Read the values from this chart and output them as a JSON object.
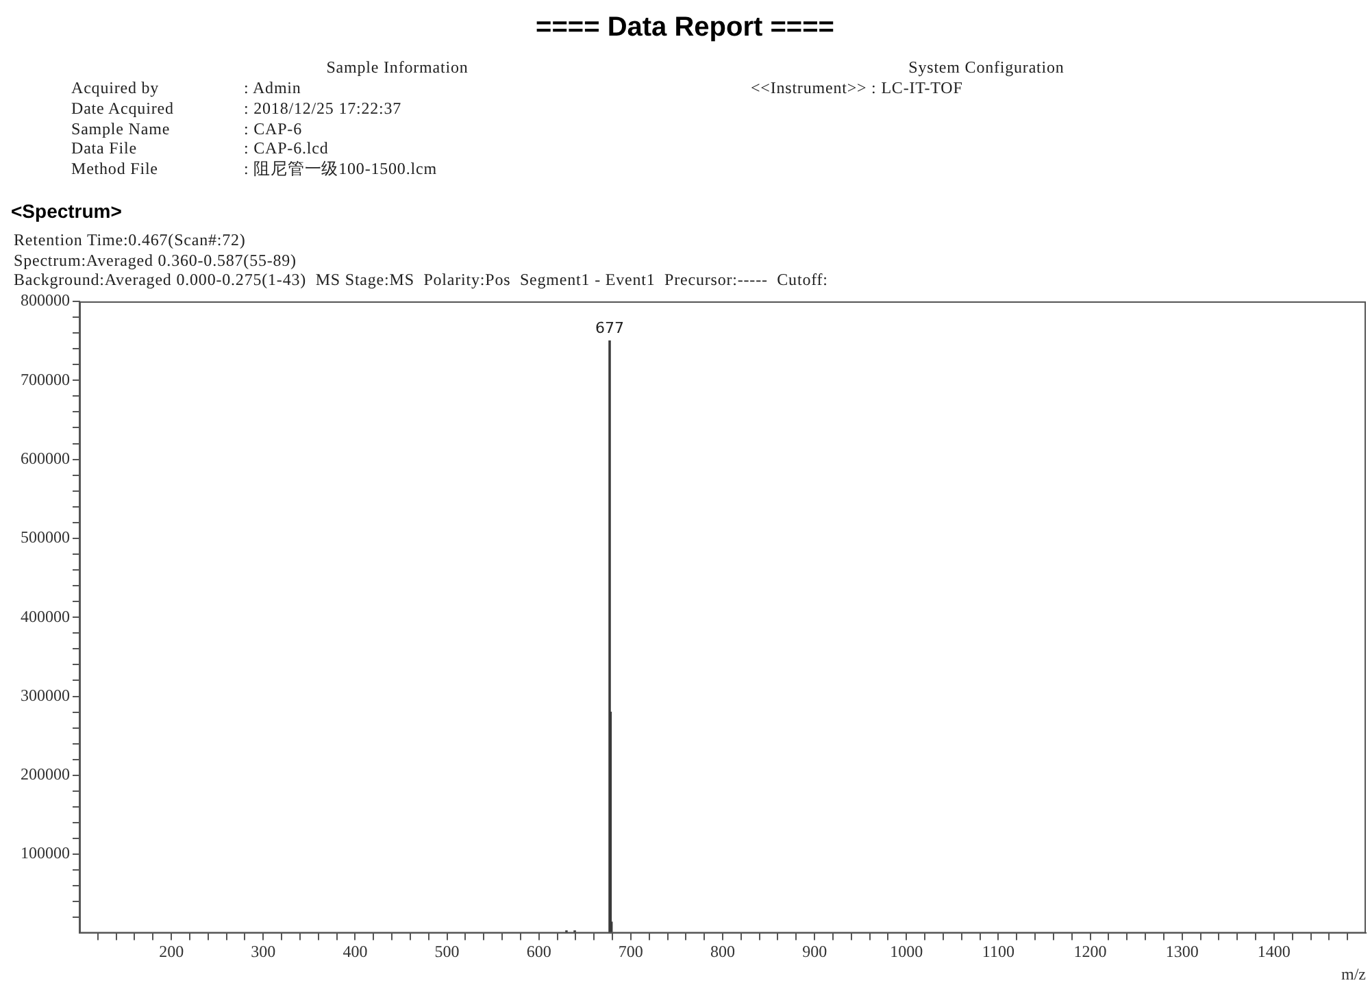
{
  "chart_data": {
    "type": "bar",
    "title": "==== Data Report ====",
    "xlabel": "m/z",
    "x": [
      630,
      639,
      677,
      678,
      679
    ],
    "values": [
      3000,
      3000,
      750000,
      280000,
      14000
    ],
    "color": "#3a3a3a",
    "xlim": [
      100,
      1500
    ],
    "xticks": [
      {
        "value": 120,
        "label": null
      },
      {
        "value": 140,
        "label": null
      },
      {
        "value": 160,
        "label": null
      },
      {
        "value": 180,
        "label": null
      },
      200,
      {
        "value": 220,
        "label": null
      },
      {
        "value": 240,
        "label": null
      },
      {
        "value": 260,
        "label": null
      },
      {
        "value": 280,
        "label": null
      },
      300,
      {
        "value": 320,
        "label": null
      },
      {
        "value": 340,
        "label": null
      },
      {
        "value": 360,
        "label": null
      },
      {
        "value": 380,
        "label": null
      },
      400,
      {
        "value": 420,
        "label": null
      },
      {
        "value": 440,
        "label": null
      },
      {
        "value": 460,
        "label": null
      },
      {
        "value": 480,
        "label": null
      },
      500,
      {
        "value": 520,
        "label": null
      },
      {
        "value": 540,
        "label": null
      },
      {
        "value": 560,
        "label": null
      },
      {
        "value": 580,
        "label": null
      },
      600,
      {
        "value": 620,
        "label": null
      },
      {
        "value": 640,
        "label": null
      },
      {
        "value": 660,
        "label": null
      },
      {
        "value": 680,
        "label": null
      },
      700,
      {
        "value": 720,
        "label": null
      },
      {
        "value": 740,
        "label": null
      },
      {
        "value": 760,
        "label": null
      },
      {
        "value": 780,
        "label": null
      },
      800,
      {
        "value": 820,
        "label": null
      },
      {
        "value": 840,
        "label": null
      },
      {
        "value": 860,
        "label": null
      },
      {
        "value": 880,
        "label": null
      },
      900,
      {
        "value": 920,
        "label": null
      },
      {
        "value": 940,
        "label": null
      },
      {
        "value": 960,
        "label": null
      },
      {
        "value": 980,
        "label": null
      },
      1000,
      {
        "value": 1020,
        "label": null
      },
      {
        "value": 1040,
        "label": null
      },
      {
        "value": 1060,
        "label": null
      },
      {
        "value": 1080,
        "label": null
      },
      1100,
      {
        "value": 1120,
        "label": null
      },
      {
        "value": 1140,
        "label": null
      },
      {
        "value": 1160,
        "label": null
      },
      {
        "value": 1180,
        "label": null
      },
      1200,
      {
        "value": 1220,
        "label": null
      },
      {
        "value": 1240,
        "label": null
      },
      {
        "value": 1260,
        "label": null
      },
      {
        "value": 1280,
        "label": null
      },
      1300,
      {
        "value": 1320,
        "label": null
      },
      {
        "value": 1340,
        "label": null
      },
      {
        "value": 1360,
        "label": null
      },
      {
        "value": 1380,
        "label": null
      },
      1400,
      {
        "value": 1420,
        "label": null
      },
      {
        "value": 1440,
        "label": null
      },
      {
        "value": 1460,
        "label": null
      },
      {
        "value": 1480,
        "label": null
      }
    ],
    "ylim": [
      0,
      800000
    ],
    "yticks": [
      {
        "value": 20000,
        "label": null
      },
      {
        "value": 40000,
        "label": null
      },
      {
        "value": 60000,
        "label": null
      },
      {
        "value": 80000,
        "label": null
      },
      100000,
      {
        "value": 120000,
        "label": null
      },
      {
        "value": 140000,
        "label": null
      },
      {
        "value": 160000,
        "label": null
      },
      {
        "value": 180000,
        "label": null
      },
      200000,
      {
        "value": 220000,
        "label": null
      },
      {
        "value": 240000,
        "label": null
      },
      {
        "value": 260000,
        "label": null
      },
      {
        "value": 280000,
        "label": null
      },
      300000,
      {
        "value": 320000,
        "label": null
      },
      {
        "value": 340000,
        "label": null
      },
      {
        "value": 360000,
        "label": null
      },
      {
        "value": 380000,
        "label": null
      },
      400000,
      {
        "value": 420000,
        "label": null
      },
      {
        "value": 440000,
        "label": null
      },
      {
        "value": 460000,
        "label": null
      },
      {
        "value": 480000,
        "label": null
      },
      500000,
      {
        "value": 520000,
        "label": null
      },
      {
        "value": 540000,
        "label": null
      },
      {
        "value": 560000,
        "label": null
      },
      {
        "value": 580000,
        "label": null
      },
      600000,
      {
        "value": 620000,
        "label": null
      },
      {
        "value": 640000,
        "label": null
      },
      {
        "value": 660000,
        "label": null
      },
      {
        "value": 680000,
        "label": null
      },
      700000,
      {
        "value": 720000,
        "label": null
      },
      {
        "value": 740000,
        "label": null
      },
      {
        "value": 760000,
        "label": null
      },
      {
        "value": 780000,
        "label": null
      },
      800000
    ],
    "annotations": [
      "Sample Information",
      "Acquired by",
      ": Admin",
      "Date Acquired",
      ": 2018/12/25 17:22:37",
      "Sample Name",
      ": CAP-6",
      "Data File",
      ": CAP-6.lcd",
      "Method File",
      ": 阻尼管一级100-1500.lcm",
      "System Configuration",
      "<<Instrument>> : LC-IT-TOF",
      "<Spectrum>",
      "Retention Time:0.467(Scan#:72)",
      "Spectrum:Averaged 0.360-0.587(55-89)",
      "Background:Averaged 0.000-0.275(1-43)  MS Stage:MS  Polarity:Pos  Segment1 - Event1  Precursor:-----  Cutoff:",
      {
        "text": "677",
        "x": 677,
        "y": 750000
      }
    ]
  }
}
